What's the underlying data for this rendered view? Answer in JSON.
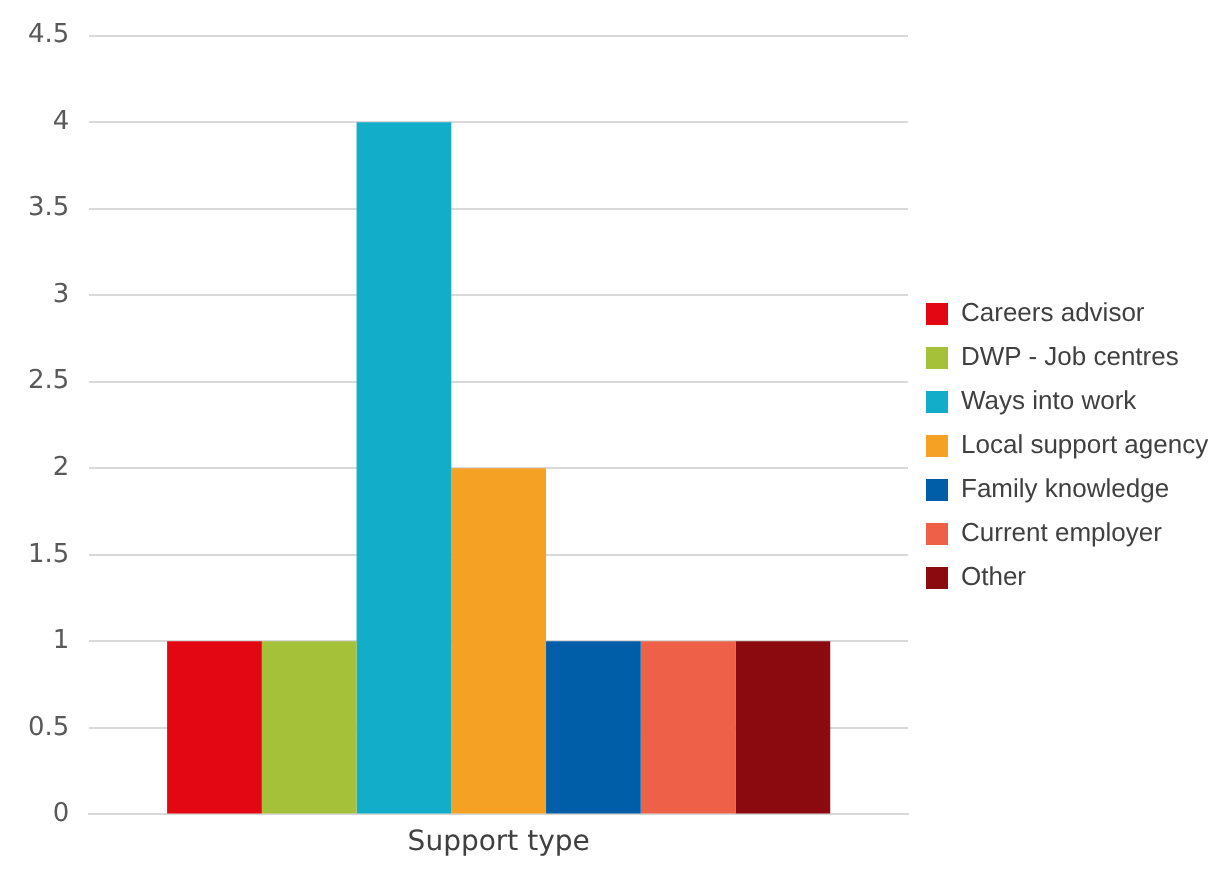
{
  "chart_data": {
    "type": "bar",
    "categories": [
      "Support type"
    ],
    "series": [
      {
        "name": "Careers advisor",
        "color": "#e30613",
        "values": [
          1
        ]
      },
      {
        "name": "DWP - Job centres",
        "color": "#a5c13a",
        "values": [
          1
        ]
      },
      {
        "name": "Ways into work",
        "color": "#12adc8",
        "values": [
          4
        ]
      },
      {
        "name": "Local support agency",
        "color": "#f4a124",
        "values": [
          2
        ]
      },
      {
        "name": "Family knowledge",
        "color": "#005ea8",
        "values": [
          1
        ]
      },
      {
        "name": "Current employer",
        "color": "#ee6148",
        "values": [
          1
        ]
      },
      {
        "name": "Other",
        "color": "#8b0a0f",
        "values": [
          1
        ]
      }
    ],
    "ylim": [
      0,
      4.5
    ],
    "yticks": [
      0,
      0.5,
      1,
      1.5,
      2,
      2.5,
      3,
      3.5,
      4,
      4.5
    ],
    "grid": "y",
    "legend": "right"
  }
}
